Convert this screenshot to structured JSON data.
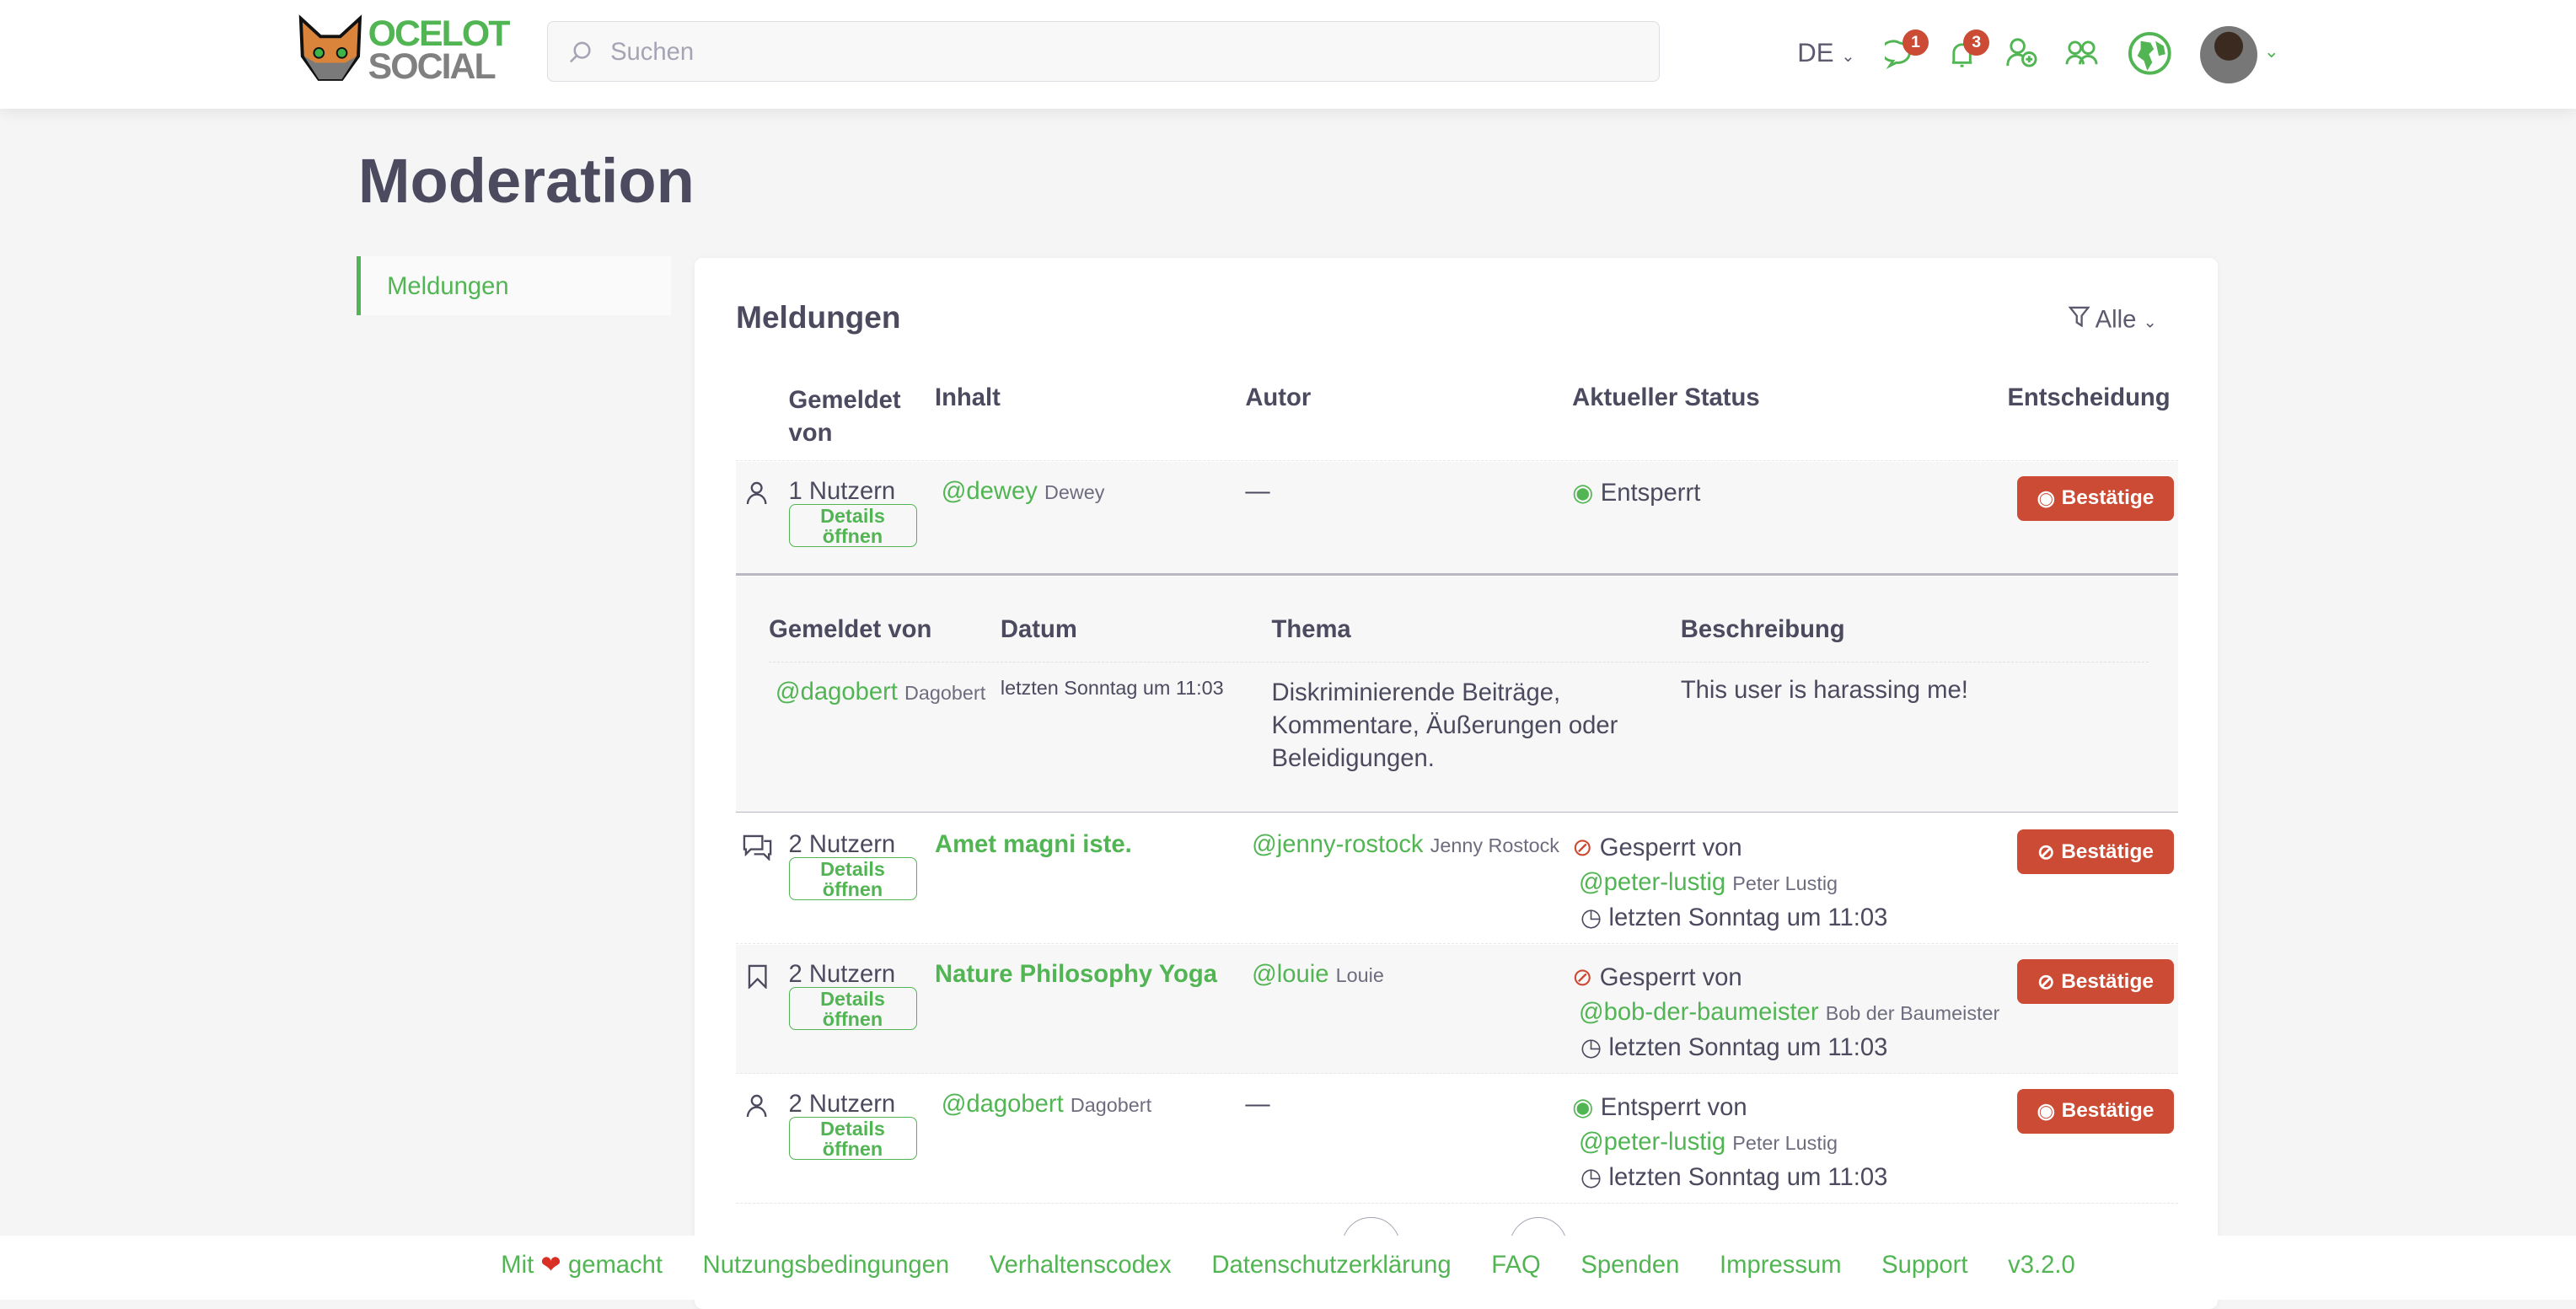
{
  "header": {
    "logo_top": "OCELOT",
    "logo_bottom": "SOCIAL",
    "search_placeholder": "Suchen",
    "language": "DE",
    "chat_badge": "1",
    "notification_badge": "3"
  },
  "page": {
    "title": "Moderation"
  },
  "sidebar": {
    "items": [
      {
        "label": "Meldungen"
      }
    ]
  },
  "card": {
    "title": "Meldungen",
    "filter_label": "Alle",
    "columns": [
      "Gemeldet von",
      "Inhalt",
      "Autor",
      "Aktueller Status",
      "Entscheidung"
    ],
    "rows": [
      {
        "type": "user",
        "reporters": "1 Nutzern",
        "details": "Details öffnen",
        "content_handle": "@dewey",
        "content_name": "Dewey",
        "author": "—",
        "status": "Entsperrt",
        "status_by_handle": "",
        "status_by_name": "",
        "status_time": "",
        "decision": "Bestätige"
      },
      {
        "type": "comment",
        "reporters": "2 Nutzern",
        "details": "Details öffnen",
        "content_title": "Amet magni iste.",
        "author_handle": "@jenny-rostock",
        "author_name": "Jenny Rostock",
        "status": "Gesperrt von",
        "status_by_handle": "@peter-lustig",
        "status_by_name": "Peter Lustig",
        "status_time": "letzten Sonntag um 11:03",
        "decision": "Bestätige"
      },
      {
        "type": "post",
        "reporters": "2 Nutzern",
        "details": "Details öffnen",
        "content_title": "Nature Philosophy Yoga",
        "author_handle": "@louie",
        "author_name": "Louie",
        "status": "Gesperrt von",
        "status_by_handle": "@bob-der-baumeister",
        "status_by_name": "Bob der Baumeister",
        "status_time": "letzten Sonntag um 11:03",
        "decision": "Bestätige"
      },
      {
        "type": "user",
        "reporters": "2 Nutzern",
        "details": "Details öffnen",
        "content_handle": "@dagobert",
        "content_name": "Dagobert",
        "author": "—",
        "status": "Entsperrt von",
        "status_by_handle": "@peter-lustig",
        "status_by_name": "Peter Lustig",
        "status_time": "letzten Sonntag um 11:03",
        "decision": "Bestätige"
      }
    ],
    "details": {
      "columns": [
        "Gemeldet von",
        "Datum",
        "Thema",
        "Beschreibung"
      ],
      "rows": [
        {
          "reporter_handle": "@dagobert",
          "reporter_name": "Dagobert",
          "date": "letzten Sonntag um 11:03",
          "topic": "Diskriminierende Beiträge, Kommentare, Äußerungen oder Beleidigungen.",
          "description": "This user is harassing me!"
        }
      ]
    }
  },
  "footer": {
    "links": [
      "Mit",
      "gemacht",
      "Nutzungsbedingungen",
      "Verhaltenscodex",
      "Datenschutzerklärung",
      "FAQ",
      "Spenden",
      "Impressum",
      "Support",
      "v3.2.0"
    ]
  },
  "colors": {
    "accent": "#52b553",
    "danger": "#cb4b34",
    "text": "#4b4a5f"
  }
}
